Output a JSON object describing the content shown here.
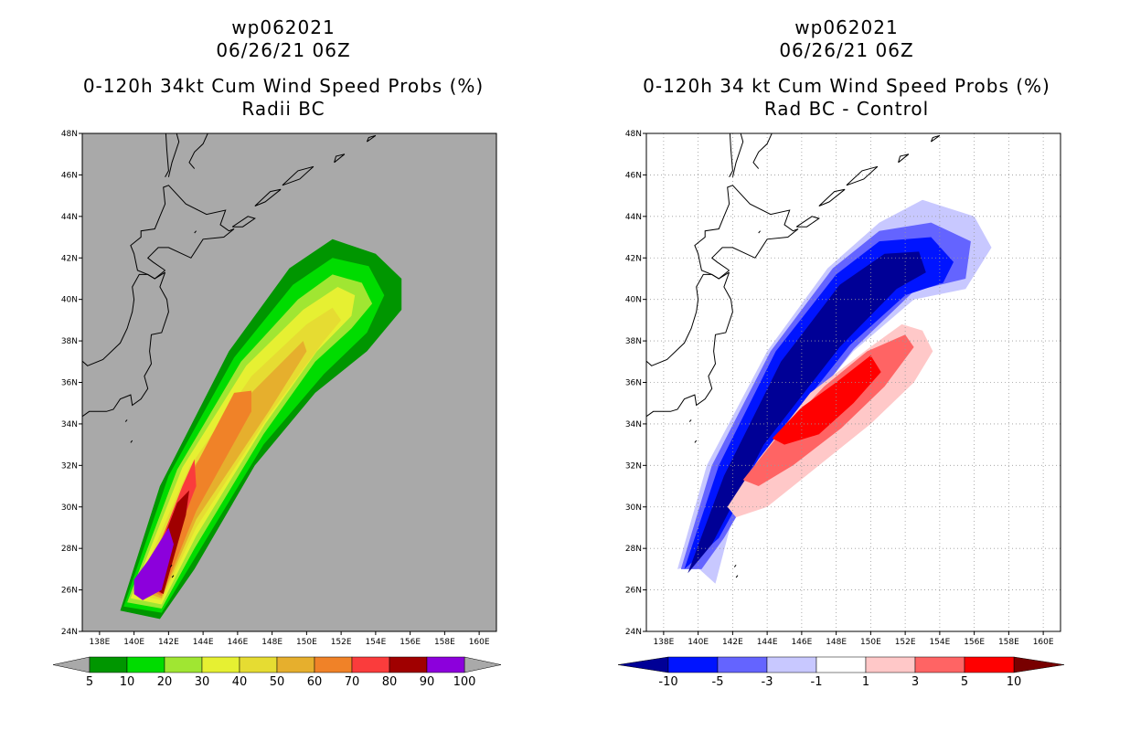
{
  "chart_data": [
    {
      "type": "heatmap",
      "name": "left",
      "title_lines": [
        "wp062021",
        "06/26/21 06Z",
        "0-120h 34kt Cum Wind Speed Probs (%)",
        "Radii BC"
      ],
      "xlim": [
        137,
        161
      ],
      "ylim": [
        24,
        48
      ],
      "x_ticks": [
        "138E",
        "140E",
        "142E",
        "144E",
        "146E",
        "148E",
        "150E",
        "152E",
        "154E",
        "156E",
        "158E",
        "160E"
      ],
      "y_ticks": [
        "24N",
        "26N",
        "28N",
        "30N",
        "32N",
        "34N",
        "36N",
        "38N",
        "40N",
        "42N",
        "44N",
        "46N",
        "48N"
      ],
      "background": "#a9a9a9",
      "gridlines": false,
      "colorbar": {
        "levels": [
          "5",
          "10",
          "20",
          "30",
          "40",
          "50",
          "60",
          "70",
          "80",
          "90",
          "100"
        ],
        "colors": [
          "#009600",
          "#00dc00",
          "#a0e632",
          "#e6f032",
          "#e6dc32",
          "#e6af2d",
          "#f08228",
          "#fa3c3c",
          "#a00000",
          "#8c00dc"
        ]
      },
      "bands": [
        {
          "color": "#009600",
          "points": [
            [
              139.2,
              25.0
            ],
            [
              141.5,
              31.0
            ],
            [
              145.5,
              37.5
            ],
            [
              149.0,
              41.5
            ],
            [
              151.5,
              42.9
            ],
            [
              154.0,
              42.2
            ],
            [
              155.5,
              41.0
            ],
            [
              155.5,
              39.5
            ],
            [
              153.5,
              37.5
            ],
            [
              150.5,
              35.5
            ],
            [
              147.0,
              32.0
            ],
            [
              143.5,
              27.0
            ],
            [
              141.5,
              24.6
            ]
          ]
        },
        {
          "color": "#00dc00",
          "points": [
            [
              139.4,
              25.2
            ],
            [
              142.0,
              31.5
            ],
            [
              145.8,
              37.2
            ],
            [
              149.2,
              40.7
            ],
            [
              151.5,
              42.0
            ],
            [
              153.6,
              41.6
            ],
            [
              154.5,
              40.2
            ],
            [
              153.5,
              38.4
            ],
            [
              151.0,
              36.4
            ],
            [
              147.5,
              33.0
            ],
            [
              143.5,
              27.5
            ],
            [
              141.6,
              24.9
            ]
          ]
        },
        {
          "color": "#a0e632",
          "points": [
            [
              139.6,
              25.4
            ],
            [
              142.5,
              31.8
            ],
            [
              146.2,
              37.0
            ],
            [
              149.5,
              40.0
            ],
            [
              151.5,
              41.2
            ],
            [
              153.2,
              40.8
            ],
            [
              153.8,
              39.8
            ],
            [
              152.6,
              38.6
            ],
            [
              150.5,
              37.0
            ],
            [
              147.5,
              33.5
            ],
            [
              143.5,
              28.0
            ],
            [
              141.6,
              25.1
            ]
          ]
        },
        {
          "color": "#e6f032",
          "points": [
            [
              139.8,
              25.6
            ],
            [
              142.8,
              31.9
            ],
            [
              146.5,
              36.8
            ],
            [
              149.8,
              39.5
            ],
            [
              151.8,
              40.6
            ],
            [
              152.8,
              40.2
            ],
            [
              152.6,
              39.2
            ],
            [
              150.6,
              37.5
            ],
            [
              147.6,
              34.0
            ],
            [
              143.6,
              28.6
            ],
            [
              141.6,
              25.3
            ]
          ]
        },
        {
          "color": "#e6dc32",
          "points": [
            [
              140.0,
              25.8
            ],
            [
              143.2,
              31.9
            ],
            [
              146.8,
              36.3
            ],
            [
              150.0,
              38.8
            ],
            [
              151.5,
              39.6
            ],
            [
              152.0,
              39.0
            ],
            [
              151.0,
              38.0
            ],
            [
              147.8,
              34.4
            ],
            [
              143.6,
              29.0
            ],
            [
              141.6,
              25.5
            ]
          ]
        },
        {
          "color": "#e6af2d",
          "points": [
            [
              140.2,
              26.0
            ],
            [
              143.5,
              32.0
            ],
            [
              146.8,
              35.5
            ],
            [
              149.8,
              38.0
            ],
            [
              150.0,
              37.5
            ],
            [
              147.8,
              34.6
            ],
            [
              143.6,
              29.4
            ],
            [
              141.6,
              25.6
            ]
          ]
        },
        {
          "color": "#f08228",
          "points": [
            [
              140.4,
              26.2
            ],
            [
              143.2,
              31.4
            ],
            [
              145.8,
              35.5
            ],
            [
              146.8,
              35.6
            ],
            [
              146.8,
              34.6
            ],
            [
              143.6,
              29.8
            ],
            [
              141.6,
              25.7
            ]
          ]
        },
        {
          "color": "#fa3c3c",
          "points": [
            [
              140.6,
              26.3
            ],
            [
              142.8,
              31.0
            ],
            [
              143.5,
              32.3
            ],
            [
              143.6,
              31.0
            ],
            [
              142.9,
              29.5
            ],
            [
              141.6,
              25.8
            ]
          ]
        },
        {
          "color": "#a00000",
          "points": [
            [
              140.7,
              26.3
            ],
            [
              142.5,
              30.2
            ],
            [
              143.2,
              30.8
            ],
            [
              143.0,
              29.6
            ],
            [
              141.7,
              25.8
            ]
          ]
        },
        {
          "color": "#8c00dc",
          "points": [
            [
              140.0,
              25.8
            ],
            [
              140.5,
              25.5
            ],
            [
              141.6,
              26.0
            ],
            [
              142.3,
              28.2
            ],
            [
              142.0,
              29.0
            ],
            [
              140.8,
              27.4
            ],
            [
              140.0,
              26.5
            ]
          ]
        }
      ]
    },
    {
      "type": "heatmap",
      "name": "right",
      "title_lines": [
        "wp062021",
        "06/26/21 06Z",
        "0-120h 34 kt Cum Wind Speed Probs (%)",
        "Rad BC - Control"
      ],
      "xlim": [
        137,
        161
      ],
      "ylim": [
        24,
        48
      ],
      "x_ticks": [
        "138E",
        "140E",
        "142E",
        "144E",
        "146E",
        "148E",
        "150E",
        "152E",
        "154E",
        "156E",
        "158E",
        "160E"
      ],
      "y_ticks": [
        "24N",
        "26N",
        "28N",
        "30N",
        "32N",
        "34N",
        "36N",
        "38N",
        "40N",
        "42N",
        "44N",
        "46N",
        "48N"
      ],
      "background": "#ffffff",
      "gridlines": true,
      "colorbar": {
        "levels": [
          "-10",
          "-5",
          "-3",
          "-1",
          "1",
          "3",
          "5",
          "10"
        ],
        "colors": [
          "#000096",
          "#0014ff",
          "#6464ff",
          "#c8c8ff",
          "#ffffff",
          "#ffc8c8",
          "#ff6464",
          "#ff0000",
          "#780000"
        ]
      },
      "bands": [
        {
          "color": "#c8c8ff",
          "points": [
            [
              138.8,
              27.0
            ],
            [
              140.5,
              32.0
            ],
            [
              144.0,
              37.5
            ],
            [
              147.5,
              41.5
            ],
            [
              150.5,
              43.7
            ],
            [
              153.0,
              44.8
            ],
            [
              156.0,
              44.0
            ],
            [
              157.0,
              42.5
            ],
            [
              155.5,
              40.5
            ],
            [
              152.5,
              40.0
            ],
            [
              149.0,
              37.5
            ],
            [
              145.0,
              33.5
            ],
            [
              142.0,
              29.5
            ],
            [
              141.0,
              26.3
            ],
            [
              139.8,
              27.2
            ]
          ]
        },
        {
          "color": "#6464ff",
          "points": [
            [
              139.0,
              27.0
            ],
            [
              140.8,
              32.0
            ],
            [
              144.2,
              37.5
            ],
            [
              147.8,
              41.5
            ],
            [
              150.5,
              43.3
            ],
            [
              153.5,
              43.7
            ],
            [
              155.8,
              42.8
            ],
            [
              155.5,
              41.0
            ],
            [
              152.5,
              40.4
            ],
            [
              149.0,
              37.6
            ],
            [
              144.5,
              32.8
            ],
            [
              141.5,
              28.5
            ],
            [
              140.2,
              27.0
            ]
          ]
        },
        {
          "color": "#0014ff",
          "points": [
            [
              139.2,
              27.0
            ],
            [
              141.2,
              32.0
            ],
            [
              144.5,
              37.5
            ],
            [
              148.0,
              41.2
            ],
            [
              150.5,
              42.8
            ],
            [
              153.5,
              43.0
            ],
            [
              154.8,
              41.8
            ],
            [
              154.2,
              40.8
            ],
            [
              152.0,
              40.2
            ],
            [
              148.8,
              37.8
            ],
            [
              144.2,
              33.0
            ],
            [
              141.2,
              28.5
            ]
          ]
        },
        {
          "color": "#000096",
          "points": [
            [
              139.4,
              26.8
            ],
            [
              141.5,
              31.5
            ],
            [
              144.8,
              37.0
            ],
            [
              148.2,
              40.7
            ],
            [
              150.8,
              42.2
            ],
            [
              152.8,
              42.3
            ],
            [
              153.2,
              41.3
            ],
            [
              151.5,
              40.5
            ],
            [
              148.2,
              37.7
            ],
            [
              143.8,
              33.0
            ],
            [
              140.8,
              28.2
            ]
          ]
        },
        {
          "color": "#ffc8c8",
          "points": [
            [
              141.7,
              30.0
            ],
            [
              143.5,
              32.3
            ],
            [
              146.5,
              35.5
            ],
            [
              149.8,
              37.6
            ],
            [
              151.8,
              38.8
            ],
            [
              153.0,
              38.5
            ],
            [
              153.6,
              37.5
            ],
            [
              152.5,
              36.0
            ],
            [
              150.0,
              34.0
            ],
            [
              147.0,
              32.0
            ],
            [
              144.0,
              30.0
            ],
            [
              142.2,
              29.5
            ]
          ]
        },
        {
          "color": "#ff6464",
          "points": [
            [
              142.6,
              31.3
            ],
            [
              144.8,
              33.6
            ],
            [
              147.3,
              35.8
            ],
            [
              149.8,
              37.5
            ],
            [
              152.0,
              38.3
            ],
            [
              152.5,
              37.7
            ],
            [
              150.8,
              35.8
            ],
            [
              148.3,
              33.8
            ],
            [
              145.5,
              32.0
            ],
            [
              143.5,
              31.0
            ]
          ]
        },
        {
          "color": "#ff0000",
          "points": [
            [
              144.3,
              33.3
            ],
            [
              146.0,
              34.8
            ],
            [
              148.0,
              36.0
            ],
            [
              150.0,
              37.3
            ],
            [
              150.6,
              36.5
            ],
            [
              149.0,
              35.0
            ],
            [
              147.0,
              33.5
            ],
            [
              145.0,
              33.0
            ]
          ]
        }
      ]
    }
  ]
}
